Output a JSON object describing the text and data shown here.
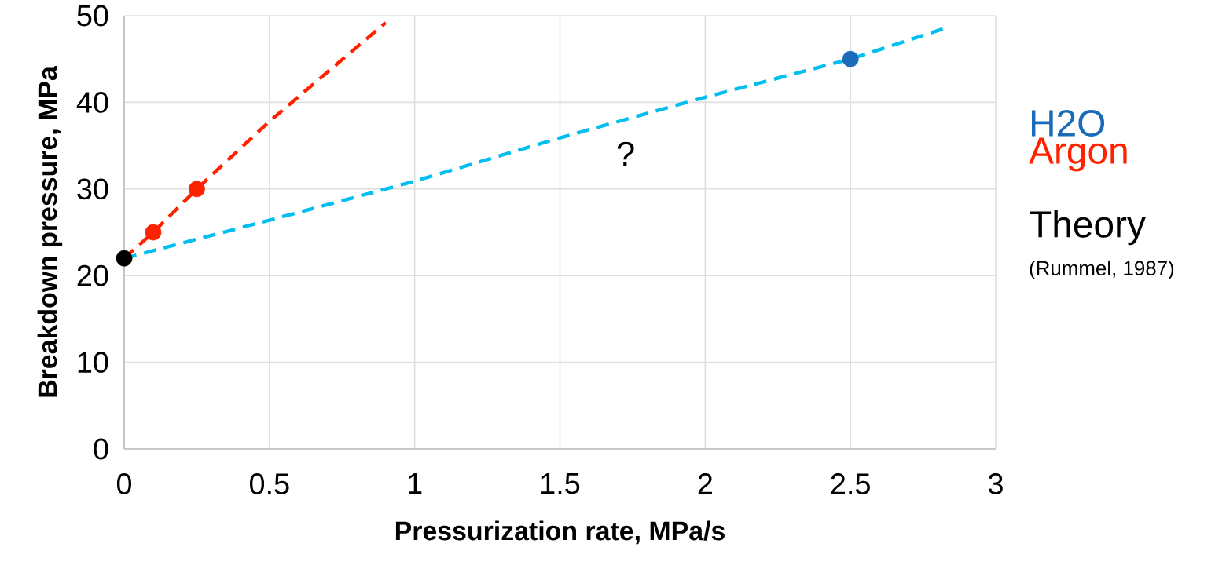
{
  "chart_data": {
    "type": "scatter",
    "xlabel": "Pressurization rate, MPa/s",
    "ylabel": "Breakdown pressure, MPa",
    "xlim": [
      0,
      3
    ],
    "ylim": [
      0,
      50
    ],
    "xticks": [
      0,
      0.5,
      1,
      1.5,
      2,
      2.5,
      3
    ],
    "yticks": [
      0,
      10,
      20,
      30,
      40,
      50
    ],
    "grid": true,
    "legend": "right",
    "series": [
      {
        "type": "line",
        "line_style": "dashed",
        "marker": "none",
        "color": "#00bef0",
        "x": [
          0,
          0.5,
          1,
          1.5,
          2,
          2.5,
          2.83
        ],
        "values": [
          22,
          26.4,
          30.9,
          35.9,
          40.6,
          45,
          48.6
        ]
      },
      {
        "type": "line",
        "line_style": "dashed",
        "marker": "none",
        "color": "#ff2200",
        "x": [
          0,
          0.1,
          0.25,
          0.5,
          0.9
        ],
        "values": [
          22,
          25,
          30,
          37.8,
          49.2
        ]
      },
      {
        "name": "H2O",
        "marker": "circle",
        "color": "#1a6cb8",
        "x": [
          2.5
        ],
        "values": [
          45
        ]
      },
      {
        "name": "Argon",
        "marker": "circle",
        "color": "#ff2200",
        "x": [
          0.1,
          0.25
        ],
        "values": [
          25,
          30
        ]
      },
      {
        "name": "Theory",
        "marker": "circle",
        "color": "#000000",
        "x": [
          0
        ],
        "values": [
          22
        ]
      }
    ],
    "annotations": [
      "?",
      "(Rummel, 1987)"
    ]
  }
}
